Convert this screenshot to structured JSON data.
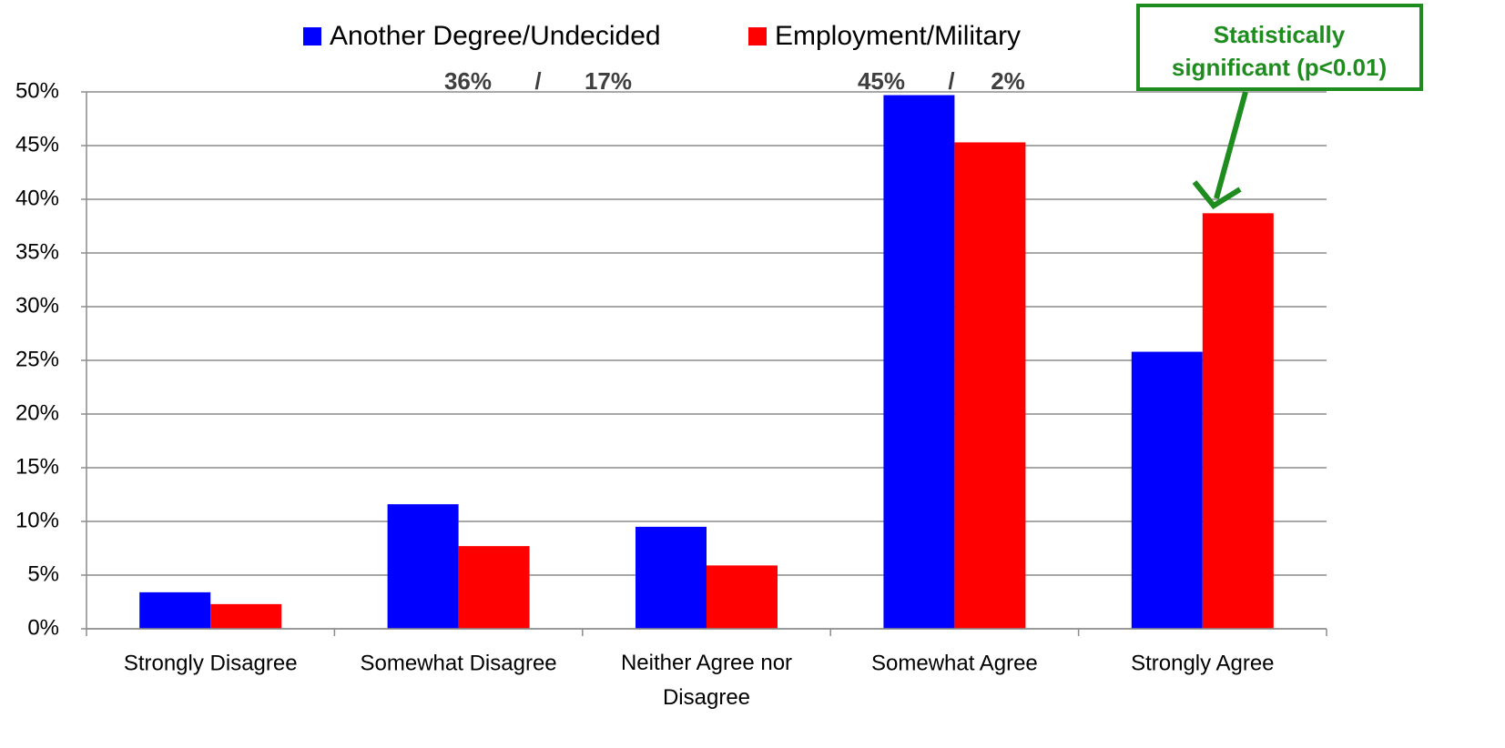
{
  "chart_data": {
    "type": "bar",
    "categories": [
      "Strongly Disagree",
      "Somewhat Disagree",
      "Neither Agree nor Disagree",
      "Somewhat Agree",
      "Strongly Agree"
    ],
    "series": [
      {
        "name": "Another Degree/Undecided",
        "color": "#0000ff",
        "values": [
          3.4,
          11.6,
          9.5,
          49.7,
          25.8
        ]
      },
      {
        "name": "Employment/Military",
        "color": "#ff0000",
        "values": [
          2.3,
          7.7,
          5.9,
          45.3,
          38.7
        ]
      }
    ],
    "ylim": [
      0,
      50
    ],
    "yticks": [
      {
        "value": 0,
        "label": "0%"
      },
      {
        "value": 5,
        "label": "5%"
      },
      {
        "value": 10,
        "label": "10%"
      },
      {
        "value": 15,
        "label": "15%"
      },
      {
        "value": 20,
        "label": "20%"
      },
      {
        "value": 25,
        "label": "25%"
      },
      {
        "value": 30,
        "label": "30%"
      },
      {
        "value": 35,
        "label": "35%"
      },
      {
        "value": 40,
        "label": "40%"
      },
      {
        "value": 45,
        "label": "45%"
      },
      {
        "value": 50,
        "label": "50%"
      }
    ],
    "grid": true,
    "legend": "top",
    "annotations": [
      "36%",
      "/",
      "17%",
      "45%",
      "/",
      "2%"
    ],
    "callout": [
      "Statistically",
      "significant (p<0.01)"
    ]
  }
}
